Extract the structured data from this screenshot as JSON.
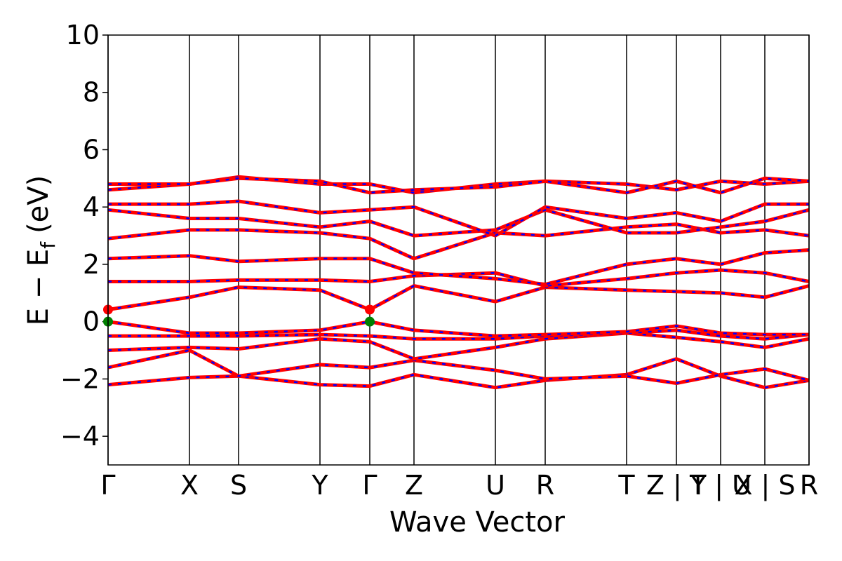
{
  "chart_data": {
    "type": "line",
    "ylabel_main": "E − E",
    "ylabel_sub": "f",
    "ylabel_unit": "(eV)",
    "xlabel": "Wave Vector",
    "xlim": [
      0,
      0.999
    ],
    "ylim": [
      -5,
      10
    ],
    "yticks": [
      10,
      8,
      6,
      4,
      2,
      0,
      {
        "value": -2,
        "label": "−2"
      },
      {
        "value": -4,
        "label": "−4"
      }
    ],
    "xticks": [
      {
        "value": 0,
        "label": "Γ"
      },
      {
        "value": 0.116,
        "label": "X"
      },
      {
        "value": 0.186,
        "label": "S"
      },
      {
        "value": 0.302,
        "label": "Y"
      },
      {
        "value": 0.373,
        "label": "Γ"
      },
      {
        "value": 0.436,
        "label": "Z"
      },
      {
        "value": 0.552,
        "label": "U"
      },
      {
        "value": 0.623,
        "label": "R"
      },
      {
        "value": 0.739,
        "label": "T"
      },
      {
        "value": 0.81,
        "label": "Z | Y"
      },
      {
        "value": 0.873,
        "label": "T | U"
      },
      {
        "value": 0.936,
        "label": "X | S"
      },
      {
        "value": 0.999,
        "label": "R"
      }
    ],
    "x": [
      0,
      0.116,
      0.186,
      0.302,
      0.373,
      0.436,
      0.552,
      0.623,
      0.739,
      0.81,
      0.873,
      0.936,
      0.999
    ],
    "colors": [
      "#ff0000",
      "#0000ff"
    ],
    "series": [
      {
        "values": [
          -2.2,
          -1.95,
          -1.9,
          -2.2,
          -2.25,
          -1.85,
          -2.3,
          -2.05,
          -1.85,
          -1.3,
          -1.9,
          -2.3,
          -2.05
        ]
      },
      {
        "values": [
          -1.6,
          -1.0,
          -1.9,
          -1.5,
          -1.6,
          -1.35,
          -1.7,
          -2.0,
          -1.9,
          -2.15,
          -1.85,
          -1.65,
          -2.05
        ]
      },
      {
        "values": [
          -1.0,
          -0.9,
          -0.95,
          -0.6,
          -0.7,
          -1.3,
          -0.9,
          -0.6,
          -0.4,
          -0.55,
          -0.7,
          -0.9,
          -0.6
        ]
      },
      {
        "values": [
          -0.5,
          -0.5,
          -0.5,
          -0.45,
          -0.5,
          -0.6,
          -0.6,
          -0.5,
          -0.4,
          -0.3,
          -0.5,
          -0.6,
          -0.45
        ]
      },
      {
        "values": [
          0,
          -0.4,
          -0.4,
          -0.3,
          0,
          -0.3,
          -0.5,
          -0.45,
          -0.35,
          -0.15,
          -0.4,
          -0.45,
          -0.45
        ]
      },
      {
        "values": [
          0.42,
          0.85,
          1.2,
          1.1,
          0.42,
          1.25,
          0.7,
          1.2,
          1.1,
          1.05,
          1.0,
          0.85,
          1.25
        ]
      },
      {
        "values": [
          1.4,
          1.4,
          1.45,
          1.45,
          1.4,
          1.6,
          1.7,
          1.25,
          1.5,
          1.7,
          1.8,
          1.7,
          1.4
        ]
      },
      {
        "values": [
          2.2,
          2.3,
          2.1,
          2.2,
          2.2,
          1.7,
          1.5,
          1.3,
          2.0,
          2.2,
          2.0,
          2.4,
          2.5
        ]
      },
      {
        "values": [
          2.9,
          3.2,
          3.2,
          3.1,
          2.9,
          2.2,
          3.1,
          3.0,
          3.3,
          3.4,
          3.1,
          3.2,
          3.0
        ]
      },
      {
        "values": [
          3.9,
          3.6,
          3.6,
          3.3,
          3.5,
          3.0,
          3.2,
          3.9,
          3.1,
          3.1,
          3.3,
          3.5,
          3.9
        ]
      },
      {
        "values": [
          4.1,
          4.1,
          4.2,
          3.8,
          3.9,
          4.0,
          3.0,
          4.0,
          3.6,
          3.8,
          3.5,
          4.1,
          4.1
        ]
      },
      {
        "values": [
          4.6,
          4.8,
          5.05,
          4.8,
          4.8,
          4.5,
          4.8,
          4.9,
          4.8,
          4.6,
          4.9,
          4.8,
          4.9
        ]
      },
      {
        "values": [
          4.8,
          4.8,
          5.0,
          4.9,
          4.5,
          4.6,
          4.7,
          4.9,
          4.5,
          4.9,
          4.5,
          5.0,
          4.9
        ]
      }
    ],
    "markers": [
      {
        "x": 0,
        "y": 0.42,
        "color": "#ff0000"
      },
      {
        "x": 0,
        "y": 0,
        "color": "#008000"
      },
      {
        "x": 0.373,
        "y": 0.42,
        "color": "#ff0000"
      },
      {
        "x": 0.373,
        "y": 0,
        "color": "#008000"
      }
    ]
  }
}
